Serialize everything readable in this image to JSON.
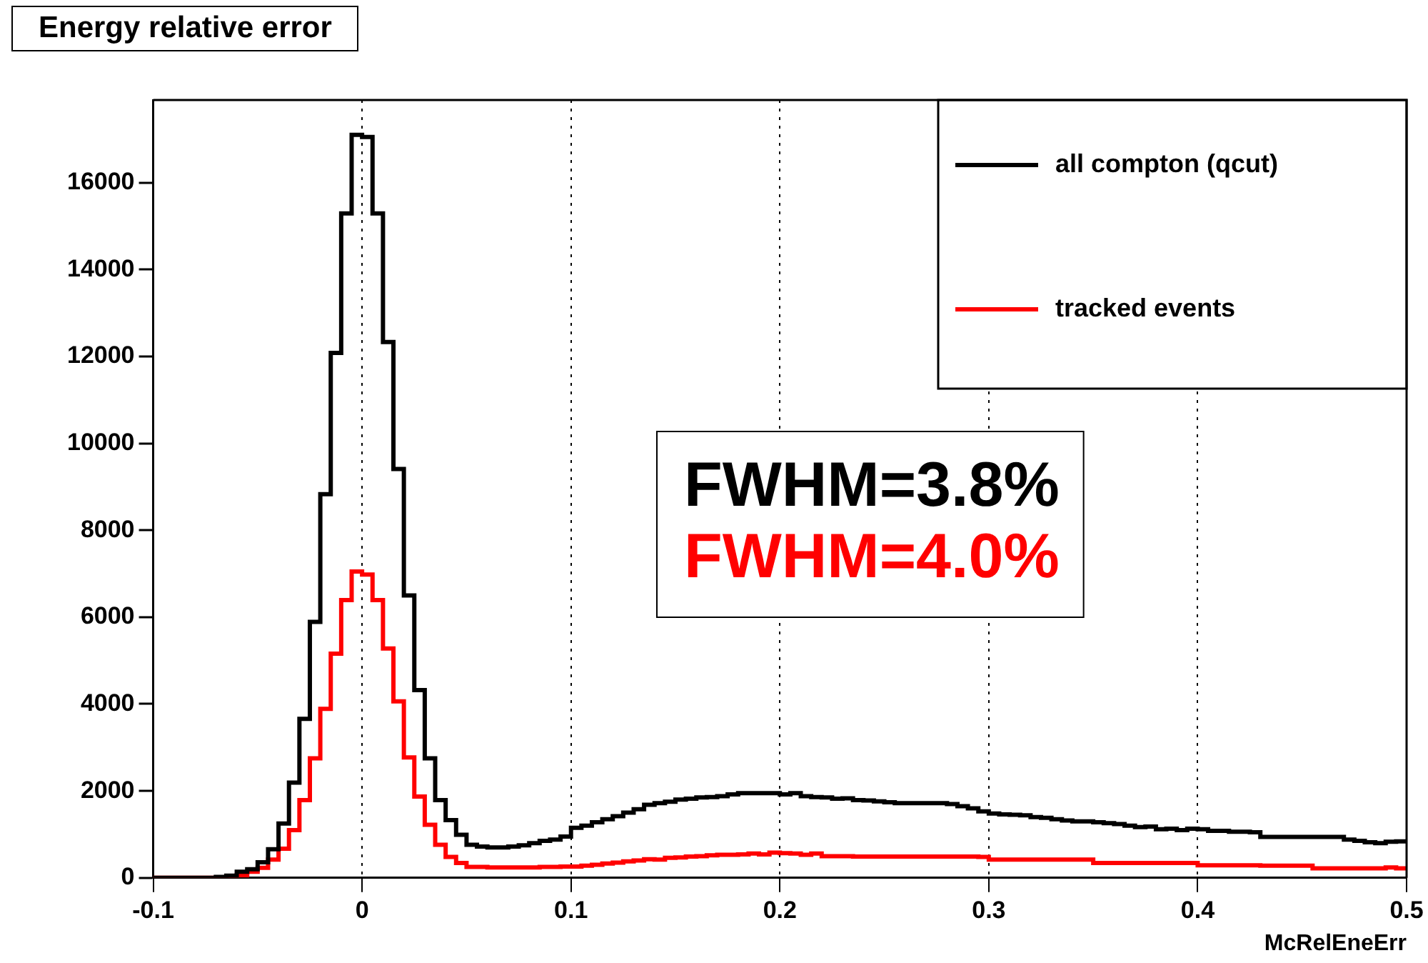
{
  "chart_data": {
    "type": "histogram",
    "title": "Energy relative error",
    "xlabel": "McRelEneErr",
    "bins": [
      -0.1,
      -0.095,
      -0.09,
      -0.085,
      -0.08,
      -0.075,
      -0.07,
      -0.065,
      -0.06,
      -0.055,
      -0.05,
      -0.045,
      -0.04,
      -0.035,
      -0.03,
      -0.025,
      -0.02,
      -0.015,
      -0.01,
      -0.005,
      0,
      0.005,
      0.01,
      0.015,
      0.02,
      0.025,
      0.03,
      0.035,
      0.04,
      0.045,
      0.05,
      0.055,
      0.06,
      0.065,
      0.07,
      0.075,
      0.08,
      0.085,
      0.09,
      0.095,
      0.1,
      0.105,
      0.11,
      0.115,
      0.12,
      0.125,
      0.13,
      0.135,
      0.14,
      0.145,
      0.15,
      0.155,
      0.16,
      0.165,
      0.17,
      0.175,
      0.18,
      0.185,
      0.19,
      0.195,
      0.2,
      0.205,
      0.21,
      0.215,
      0.22,
      0.225,
      0.23,
      0.235,
      0.24,
      0.245,
      0.25,
      0.255,
      0.26,
      0.265,
      0.27,
      0.275,
      0.28,
      0.285,
      0.29,
      0.295,
      0.3,
      0.305,
      0.31,
      0.315,
      0.32,
      0.325,
      0.33,
      0.335,
      0.34,
      0.345,
      0.35,
      0.355,
      0.36,
      0.365,
      0.37,
      0.375,
      0.38,
      0.385,
      0.39,
      0.395,
      0.4,
      0.405,
      0.41,
      0.415,
      0.42,
      0.425,
      0.43,
      0.435,
      0.44,
      0.445,
      0.45,
      0.455,
      0.46,
      0.465,
      0.47,
      0.475,
      0.48,
      0.485,
      0.49,
      0.495,
      0.5
    ],
    "series": [
      {
        "name": "all compton (qcut)",
        "color": "#000000",
        "values": [
          0,
          0,
          0,
          0,
          0,
          0,
          20,
          50,
          140,
          200,
          360,
          660,
          1250,
          2190,
          3660,
          5890,
          8830,
          12080,
          15290,
          17100,
          17050,
          15290,
          12330,
          9410,
          6500,
          4320,
          2750,
          1790,
          1330,
          990,
          760,
          720,
          700,
          700,
          720,
          750,
          800,
          850,
          880,
          950,
          1150,
          1200,
          1280,
          1350,
          1420,
          1500,
          1580,
          1680,
          1720,
          1750,
          1800,
          1820,
          1850,
          1860,
          1880,
          1920,
          1950,
          1950,
          1950,
          1950,
          1920,
          1950,
          1880,
          1860,
          1850,
          1820,
          1830,
          1790,
          1780,
          1760,
          1740,
          1720,
          1720,
          1720,
          1720,
          1720,
          1700,
          1650,
          1600,
          1530,
          1480,
          1460,
          1450,
          1440,
          1400,
          1380,
          1350,
          1320,
          1300,
          1300,
          1280,
          1260,
          1240,
          1200,
          1170,
          1180,
          1120,
          1130,
          1100,
          1130,
          1120,
          1080,
          1080,
          1060,
          1060,
          1050,
          940,
          940,
          940,
          940,
          940,
          940,
          940,
          940,
          880,
          850,
          820,
          800,
          830,
          840
        ]
      },
      {
        "name": "tracked events",
        "color": "#ff0000",
        "values": [
          0,
          0,
          0,
          0,
          0,
          0,
          0,
          30,
          60,
          140,
          230,
          420,
          670,
          1100,
          1790,
          2750,
          3890,
          5160,
          6390,
          7050,
          6980,
          6390,
          5280,
          4060,
          2770,
          1870,
          1220,
          760,
          480,
          340,
          250,
          250,
          240,
          240,
          240,
          240,
          240,
          250,
          250,
          260,
          260,
          280,
          300,
          330,
          350,
          380,
          400,
          430,
          420,
          460,
          470,
          490,
          500,
          520,
          530,
          530,
          540,
          560,
          540,
          580,
          570,
          560,
          530,
          560,
          500,
          500,
          500,
          490,
          490,
          490,
          490,
          490,
          490,
          490,
          490,
          490,
          490,
          490,
          490,
          480,
          420,
          420,
          420,
          420,
          420,
          420,
          420,
          420,
          420,
          420,
          340,
          340,
          340,
          340,
          340,
          340,
          340,
          340,
          340,
          340,
          290,
          290,
          290,
          290,
          290,
          290,
          280,
          280,
          280,
          280,
          280,
          220,
          220,
          220,
          220,
          220,
          220,
          220,
          240,
          220
        ]
      }
    ],
    "xlim": [
      -0.1,
      0.5
    ],
    "xticks": [
      -0.1,
      0,
      0.1,
      0.2,
      0.3,
      0.4,
      0.5
    ],
    "ylim": [
      0,
      17900
    ],
    "yticks": [
      0,
      2000,
      4000,
      6000,
      8000,
      10000,
      12000,
      14000,
      16000
    ],
    "grid": "x",
    "legend": "top right",
    "annotations": [
      "FWHM=3.8%",
      "FWHM=4.0%"
    ]
  }
}
